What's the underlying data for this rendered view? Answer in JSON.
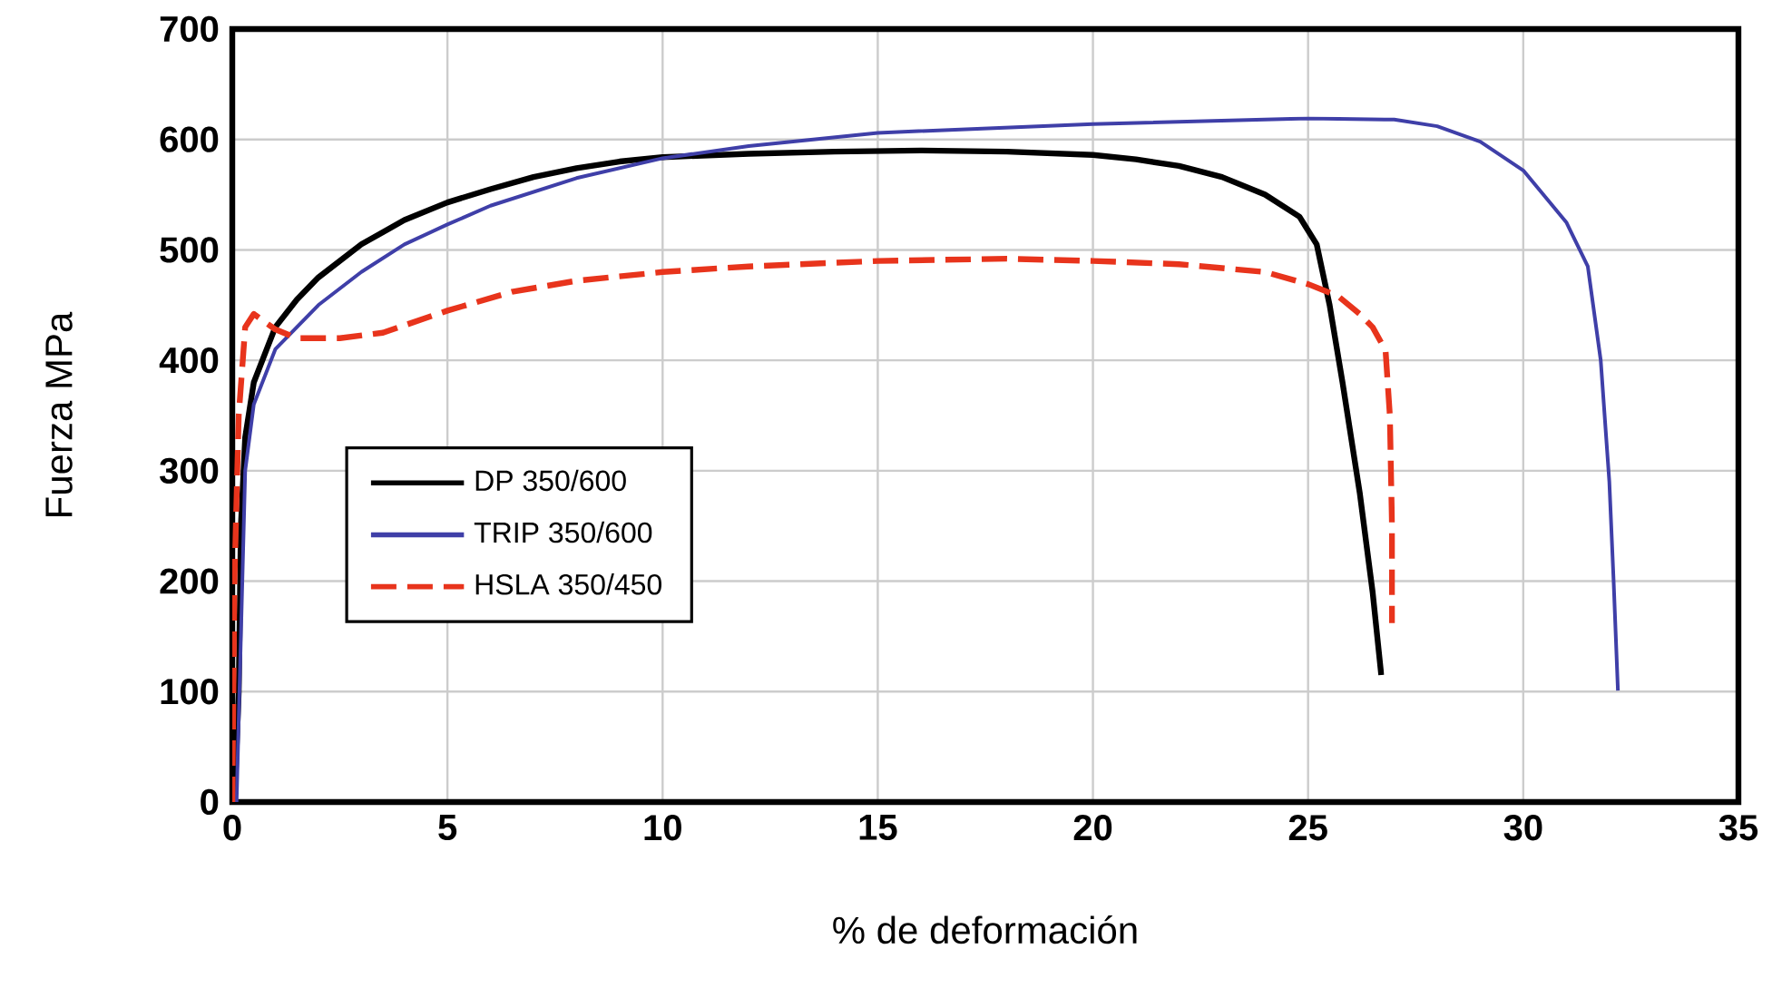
{
  "chart_data": {
    "type": "line",
    "xlabel": "% de deformación",
    "ylabel": "Fuerza MPa",
    "xlim": [
      0,
      35
    ],
    "ylim": [
      0,
      700
    ],
    "xticks": [
      0,
      5,
      10,
      15,
      20,
      25,
      30,
      35
    ],
    "yticks": [
      0,
      100,
      200,
      300,
      400,
      500,
      600,
      700
    ],
    "grid": true,
    "legend": "left",
    "marker": "none",
    "series": [
      {
        "name": "DP 350/600",
        "color": "#000000",
        "line_style": "solid",
        "x": [
          0.05,
          0.15,
          0.2,
          0.3,
          0.5,
          0.8,
          1,
          1.5,
          2,
          3,
          4,
          5,
          6,
          7,
          8,
          9,
          10,
          12,
          14,
          16,
          18,
          20,
          21,
          22,
          23,
          24,
          24.8,
          25.2,
          25.5,
          25.8,
          26.2,
          26.5,
          26.7
        ],
        "values": [
          0,
          100,
          250,
          330,
          380,
          410,
          430,
          455,
          475,
          505,
          527,
          543,
          555,
          566,
          574,
          580,
          584,
          587,
          589,
          590,
          589,
          586,
          582,
          576,
          566,
          550,
          530,
          505,
          450,
          380,
          280,
          190,
          115
        ]
      },
      {
        "name": "TRIP 350/600",
        "color": "#3f3fa8",
        "line_style": "solid",
        "x": [
          0.1,
          0.2,
          0.3,
          0.5,
          1,
          2,
          3,
          4,
          5,
          6,
          8,
          10,
          12,
          15,
          20,
          25,
          27,
          28,
          29,
          30,
          31,
          31.5,
          31.8,
          32,
          32.1,
          32.2
        ],
        "values": [
          0,
          150,
          300,
          360,
          410,
          450,
          480,
          505,
          523,
          540,
          565,
          583,
          594,
          606,
          614,
          619,
          618,
          612,
          598,
          572,
          525,
          485,
          400,
          290,
          200,
          101
        ]
      },
      {
        "name": "HSLA 350/450",
        "color": "#e8341c",
        "line_style": "dashed",
        "x": [
          0,
          0.05,
          0.15,
          0.3,
          0.5,
          1,
          1.5,
          2.5,
          3.5,
          5,
          6.5,
          8,
          10,
          12,
          15,
          18,
          20,
          22,
          24,
          25,
          25.7,
          26.2,
          26.5,
          26.8,
          26.9,
          26.95,
          26.95
        ],
        "values": [
          0,
          200,
          350,
          430,
          442,
          428,
          420,
          420,
          425,
          445,
          462,
          472,
          480,
          485,
          490,
          492,
          490,
          487,
          480,
          469,
          458,
          442,
          430,
          409,
          350,
          250,
          162
        ]
      }
    ]
  }
}
